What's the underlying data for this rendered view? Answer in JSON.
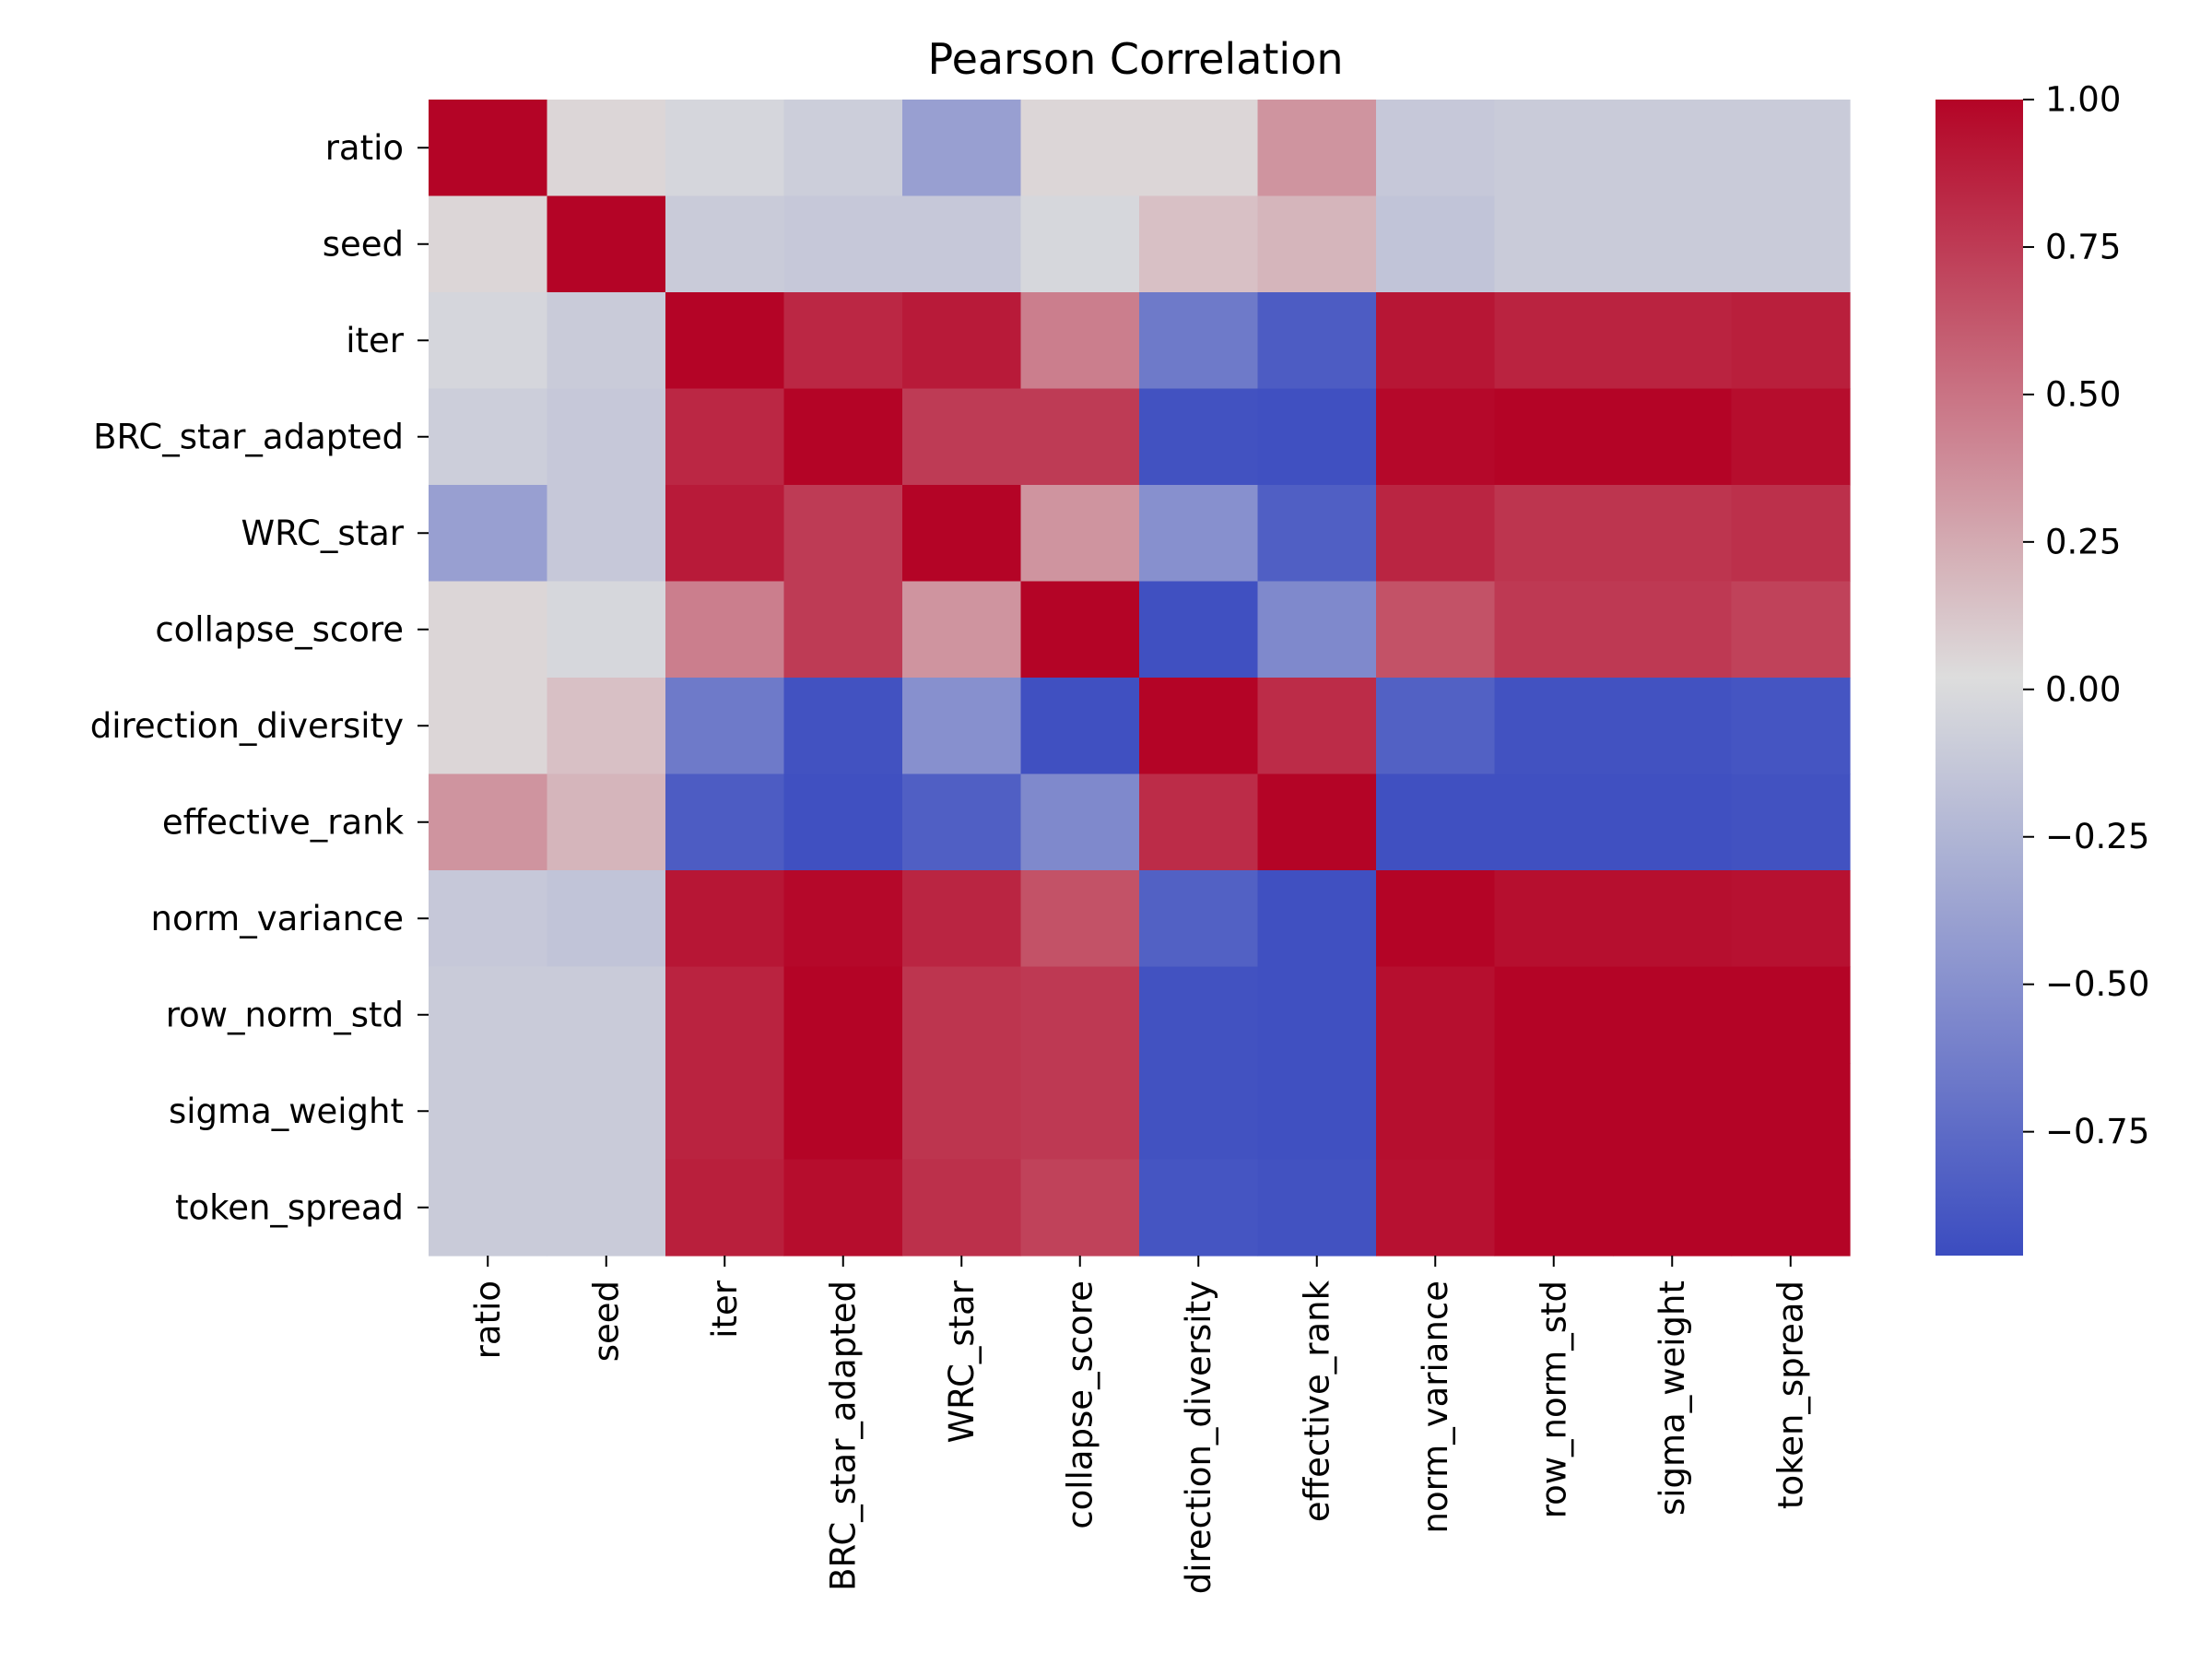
{
  "chart_data": {
    "type": "heatmap",
    "title": "Pearson Correlation",
    "xlabel": "",
    "ylabel": "",
    "labels": [
      "ratio",
      "seed",
      "iter",
      "BRC_star_adapted",
      "WRC_star",
      "collapse_score",
      "direction_diversity",
      "effective_rank",
      "norm_variance",
      "row_norm_std",
      "sigma_weight",
      "token_spread"
    ],
    "matrix": [
      [
        1.0,
        0.05,
        -0.03,
        -0.08,
        -0.4,
        0.05,
        0.05,
        0.35,
        -0.12,
        -0.1,
        -0.1,
        -0.1
      ],
      [
        0.05,
        1.0,
        -0.1,
        -0.12,
        -0.12,
        -0.02,
        0.15,
        0.2,
        -0.15,
        -0.1,
        -0.1,
        -0.1
      ],
      [
        -0.03,
        -0.1,
        1.0,
        0.84,
        0.9,
        0.45,
        -0.65,
        -0.85,
        0.92,
        0.86,
        0.86,
        0.88
      ],
      [
        -0.08,
        -0.12,
        0.84,
        1.0,
        0.75,
        0.75,
        -0.92,
        -0.93,
        0.98,
        1.0,
        1.0,
        0.96
      ],
      [
        -0.4,
        -0.12,
        0.9,
        0.75,
        1.0,
        0.35,
        -0.5,
        -0.83,
        0.85,
        0.78,
        0.78,
        0.8
      ],
      [
        0.05,
        -0.02,
        0.45,
        0.75,
        0.35,
        1.0,
        -0.93,
        -0.55,
        0.65,
        0.76,
        0.76,
        0.72
      ],
      [
        0.05,
        0.15,
        -0.65,
        -0.92,
        -0.5,
        -0.93,
        1.0,
        0.82,
        -0.82,
        -0.92,
        -0.92,
        -0.9
      ],
      [
        0.35,
        0.2,
        -0.85,
        -0.93,
        -0.83,
        -0.55,
        0.82,
        1.0,
        -0.93,
        -0.93,
        -0.93,
        -0.92
      ],
      [
        -0.12,
        -0.15,
        0.92,
        0.98,
        0.85,
        0.65,
        -0.82,
        -0.93,
        1.0,
        0.95,
        0.95,
        0.94
      ],
      [
        -0.1,
        -0.1,
        0.86,
        1.0,
        0.78,
        0.76,
        -0.92,
        -0.93,
        0.95,
        1.0,
        1.0,
        1.0
      ],
      [
        -0.1,
        -0.1,
        0.86,
        1.0,
        0.78,
        0.76,
        -0.92,
        -0.93,
        0.95,
        1.0,
        1.0,
        1.0
      ],
      [
        -0.1,
        -0.1,
        0.88,
        0.96,
        0.8,
        0.72,
        -0.9,
        -0.92,
        0.94,
        1.0,
        1.0,
        1.0
      ]
    ],
    "zlim": [
      -0.96,
      1.0
    ],
    "colorbar_ticks": [
      {
        "value": 1.0,
        "label": "1.00"
      },
      {
        "value": 0.75,
        "label": "0.75"
      },
      {
        "value": 0.5,
        "label": "0.50"
      },
      {
        "value": 0.25,
        "label": "0.25"
      },
      {
        "value": 0.0,
        "label": "0.00"
      },
      {
        "value": -0.25,
        "label": "−0.25"
      },
      {
        "value": -0.5,
        "label": "−0.50"
      },
      {
        "value": -0.75,
        "label": "−0.75"
      }
    ],
    "colormap": "coolwarm",
    "colormap_stops": [
      "#3b4cc0",
      "#dddddd",
      "#b40426"
    ],
    "grid": false,
    "colorbar_position": "right"
  }
}
